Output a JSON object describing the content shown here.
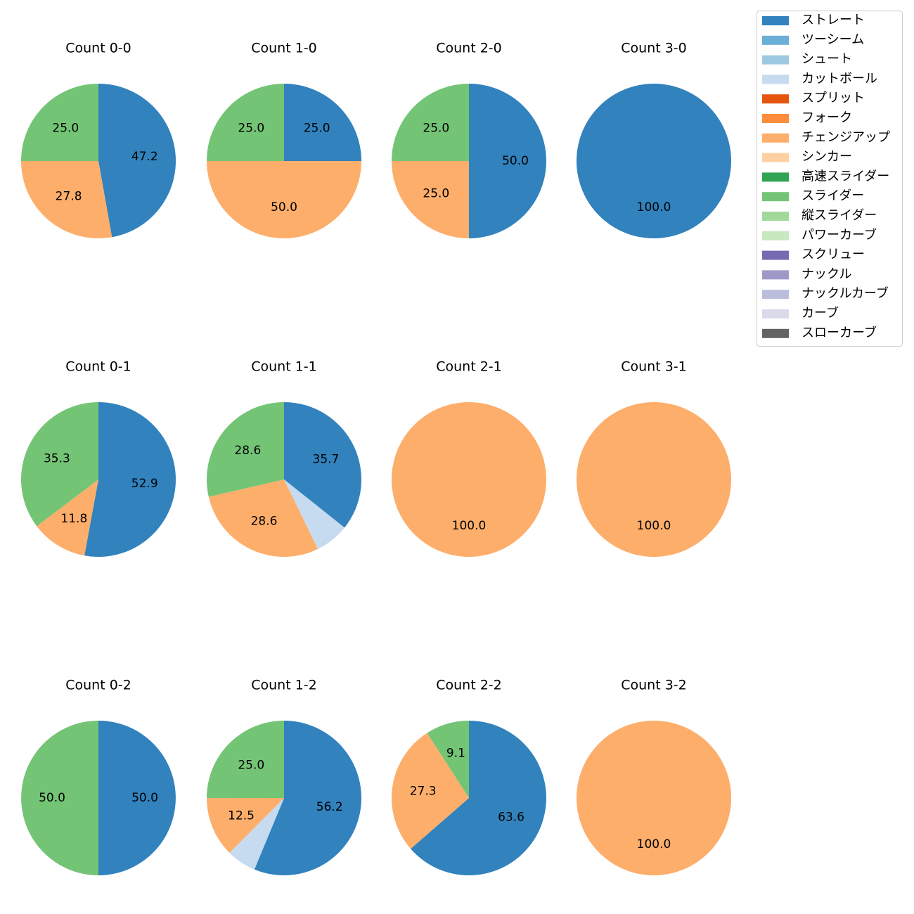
{
  "legend": [
    {
      "name": "ストレート",
      "color": "#3182bd"
    },
    {
      "name": "ツーシーム",
      "color": "#6baed6"
    },
    {
      "name": "シュート",
      "color": "#9ecae1"
    },
    {
      "name": "カットボール",
      "color": "#c6dbef"
    },
    {
      "name": "スプリット",
      "color": "#e6550d"
    },
    {
      "name": "フォーク",
      "color": "#fd8d3c"
    },
    {
      "name": "チェンジアップ",
      "color": "#fdae6b"
    },
    {
      "name": "シンカー",
      "color": "#fdd0a2"
    },
    {
      "name": "高速スライダー",
      "color": "#31a354"
    },
    {
      "name": "スライダー",
      "color": "#74c476"
    },
    {
      "name": "縦スライダー",
      "color": "#a1d99b"
    },
    {
      "name": "パワーカーブ",
      "color": "#c7e9c0"
    },
    {
      "name": "スクリュー",
      "color": "#756bb1"
    },
    {
      "name": "ナックル",
      "color": "#9e9ac8"
    },
    {
      "name": "ナックルカーブ",
      "color": "#bcbddc"
    },
    {
      "name": "カーブ",
      "color": "#dadaeb"
    },
    {
      "name": "スローカーブ",
      "color": "#636363"
    }
  ],
  "chart_data": [
    {
      "type": "pie",
      "title": "Count 0-0",
      "categories": [
        "ストレート",
        "チェンジアップ",
        "スライダー"
      ],
      "values": [
        47.2,
        27.8,
        25.0
      ],
      "value_labels": [
        "47.2",
        "27.8",
        "25.0"
      ]
    },
    {
      "type": "pie",
      "title": "Count 1-0",
      "categories": [
        "ストレート",
        "チェンジアップ",
        "スライダー"
      ],
      "values": [
        25.0,
        50.0,
        25.0
      ],
      "value_labels": [
        "25.0",
        "50.0",
        "25.0"
      ]
    },
    {
      "type": "pie",
      "title": "Count 2-0",
      "categories": [
        "ストレート",
        "チェンジアップ",
        "スライダー"
      ],
      "values": [
        50.0,
        25.0,
        25.0
      ],
      "value_labels": [
        "50.0",
        "25.0",
        "25.0"
      ]
    },
    {
      "type": "pie",
      "title": "Count 3-0",
      "categories": [
        "ストレート"
      ],
      "values": [
        100.0
      ],
      "value_labels": [
        "100.0"
      ]
    },
    {
      "type": "pie",
      "title": "Count 0-1",
      "categories": [
        "ストレート",
        "チェンジアップ",
        "スライダー"
      ],
      "values": [
        52.9,
        11.8,
        35.3
      ],
      "value_labels": [
        "52.9",
        "11.8",
        "35.3"
      ]
    },
    {
      "type": "pie",
      "title": "Count 1-1",
      "categories": [
        "ストレート",
        "カットボール",
        "チェンジアップ",
        "スライダー"
      ],
      "values": [
        35.7,
        7.1,
        28.6,
        28.6
      ],
      "value_labels": [
        "35.7",
        null,
        "28.6",
        "28.6"
      ]
    },
    {
      "type": "pie",
      "title": "Count 2-1",
      "categories": [
        "チェンジアップ"
      ],
      "values": [
        100.0
      ],
      "value_labels": [
        "100.0"
      ]
    },
    {
      "type": "pie",
      "title": "Count 3-1",
      "categories": [
        "チェンジアップ"
      ],
      "values": [
        100.0
      ],
      "value_labels": [
        "100.0"
      ]
    },
    {
      "type": "pie",
      "title": "Count 0-2",
      "categories": [
        "ストレート",
        "スライダー"
      ],
      "values": [
        50.0,
        50.0
      ],
      "value_labels": [
        "50.0",
        "50.0"
      ]
    },
    {
      "type": "pie",
      "title": "Count 1-2",
      "categories": [
        "ストレート",
        "カットボール",
        "チェンジアップ",
        "スライダー"
      ],
      "values": [
        56.2,
        6.2,
        12.5,
        25.0
      ],
      "value_labels": [
        "56.2",
        null,
        "12.5",
        "25.0"
      ]
    },
    {
      "type": "pie",
      "title": "Count 2-2",
      "categories": [
        "ストレート",
        "チェンジアップ",
        "スライダー"
      ],
      "values": [
        63.6,
        27.3,
        9.1
      ],
      "value_labels": [
        "63.6",
        "27.3",
        "9.1"
      ]
    },
    {
      "type": "pie",
      "title": "Count 3-2",
      "categories": [
        "チェンジアップ"
      ],
      "values": [
        100.0
      ],
      "value_labels": [
        "100.0"
      ]
    }
  ]
}
